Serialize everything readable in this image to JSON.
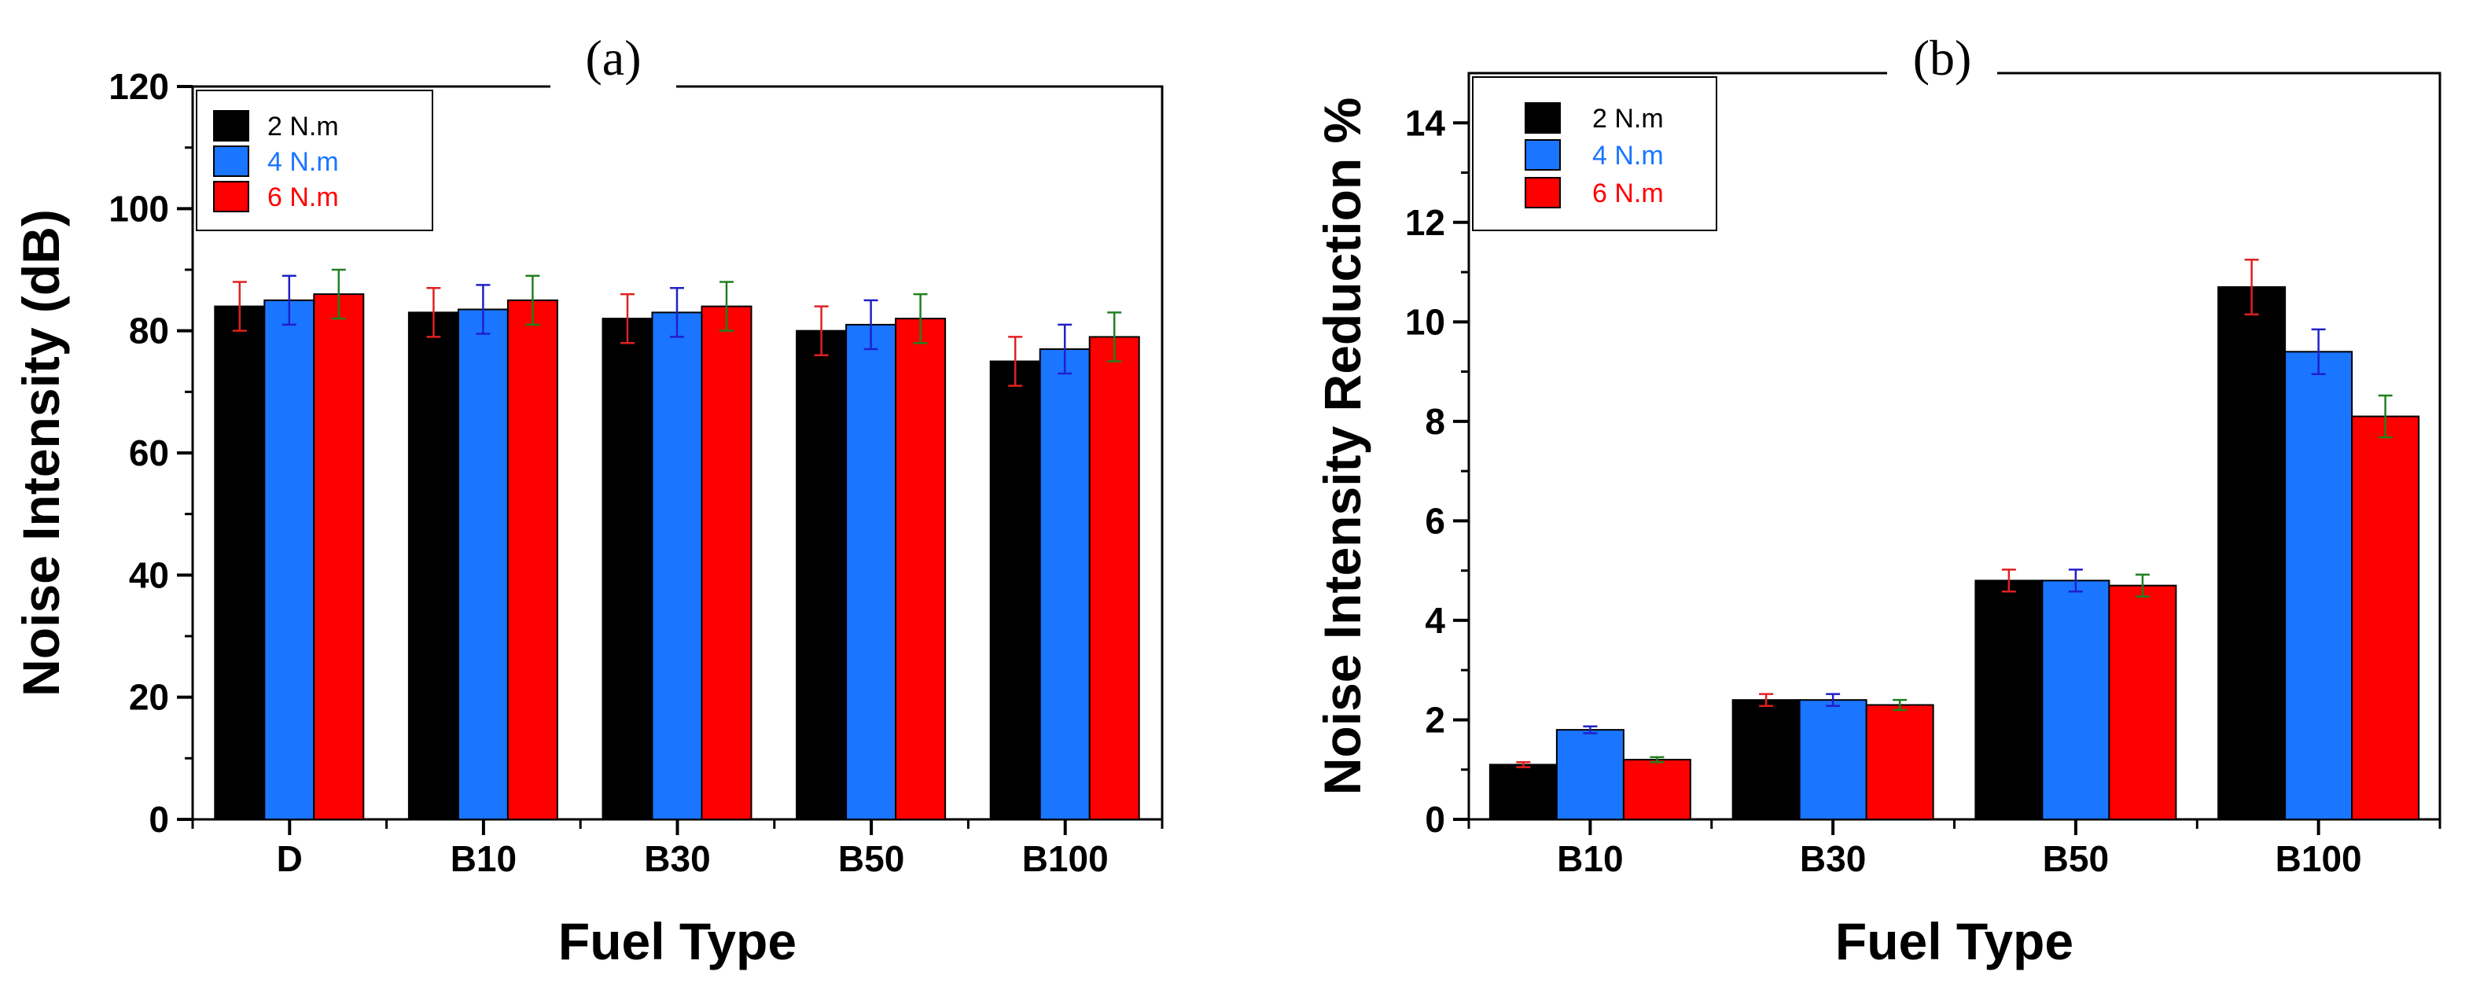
{
  "chart_data": [
    {
      "type": "bar",
      "panel_label": "(a)",
      "xlabel": "Fuel Type",
      "ylabel": "Noise Intensity (dB)",
      "categories": [
        "D",
        "B10",
        "B30",
        "B50",
        "B100"
      ],
      "ylim": [
        0,
        120
      ],
      "yticks": [
        0,
        20,
        40,
        60,
        80,
        100,
        120
      ],
      "legend_position": "top-left",
      "grid": false,
      "series": [
        {
          "name": "2  N.m",
          "color": "#000000",
          "label_color": "#000000",
          "errbar_color": "#e02020",
          "values": [
            84,
            83,
            82,
            80,
            75
          ],
          "errors": [
            4,
            4,
            4,
            4,
            4
          ]
        },
        {
          "name": "4 N.m",
          "color": "#1a75ff",
          "label_color": "#1a75ff",
          "errbar_color": "#2020c8",
          "values": [
            85,
            83.5,
            83,
            81,
            77
          ],
          "errors": [
            4,
            4,
            4,
            4,
            4
          ]
        },
        {
          "name": "6 N.m",
          "color": "#ff0000",
          "label_color": "#ff0000",
          "errbar_color": "#208020",
          "values": [
            86,
            85,
            84,
            82,
            79
          ],
          "errors": [
            4,
            4,
            4,
            4,
            4
          ]
        }
      ]
    },
    {
      "type": "bar",
      "panel_label": "(b)",
      "xlabel": "Fuel Type",
      "ylabel": "Noise Intensity Reduction %",
      "categories": [
        "B10",
        "B30",
        "B50",
        "B100"
      ],
      "ylim": [
        0,
        15
      ],
      "yticks": [
        0,
        2,
        4,
        6,
        8,
        10,
        12,
        14
      ],
      "legend_position": "top-left",
      "grid": false,
      "series": [
        {
          "name": "2  N.m",
          "color": "#000000",
          "label_color": "#000000",
          "errbar_color": "#e02020",
          "values": [
            1.1,
            2.4,
            4.8,
            10.7
          ],
          "errors": [
            0.05,
            0.12,
            0.22,
            0.55
          ]
        },
        {
          "name": "4 N.m",
          "color": "#1a75ff",
          "label_color": "#1a75ff",
          "errbar_color": "#2020c8",
          "values": [
            1.8,
            2.4,
            4.8,
            9.4
          ],
          "errors": [
            0.07,
            0.12,
            0.22,
            0.45
          ]
        },
        {
          "name": "6 N.m",
          "color": "#ff0000",
          "label_color": "#ff0000",
          "errbar_color": "#208020",
          "values": [
            1.2,
            2.3,
            4.7,
            8.1
          ],
          "errors": [
            0.05,
            0.1,
            0.22,
            0.42
          ]
        }
      ]
    }
  ]
}
